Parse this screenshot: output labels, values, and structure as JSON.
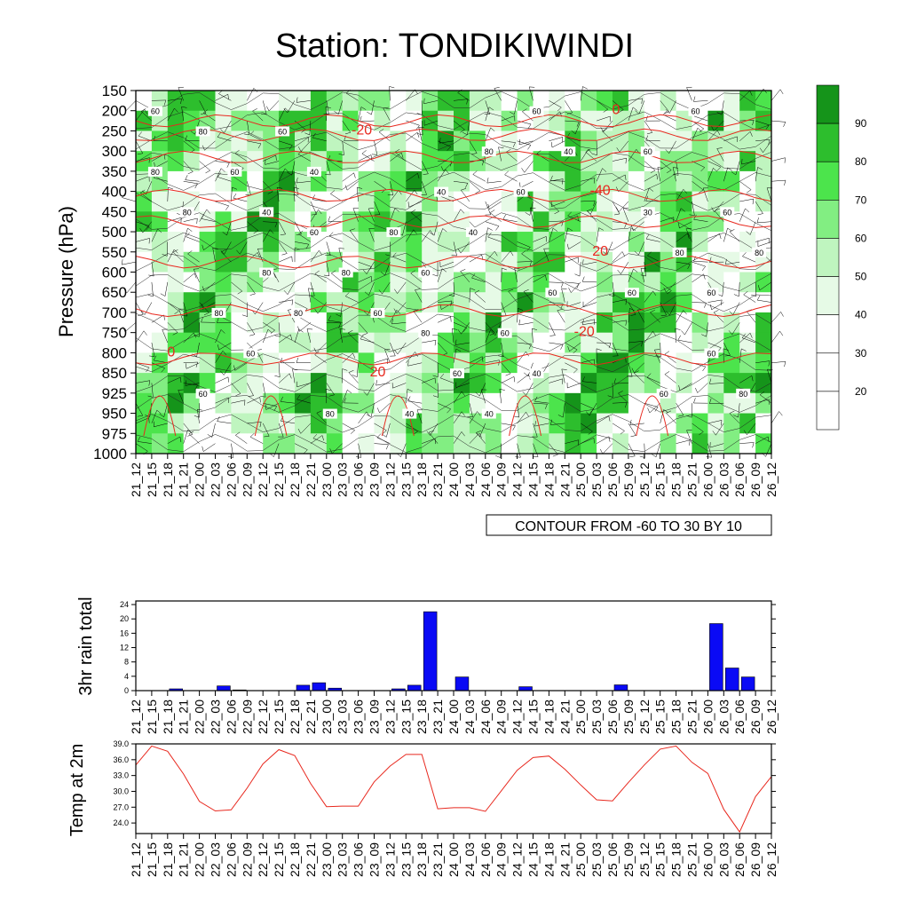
{
  "title": "Station: TONDIKIWINDI",
  "time_labels": [
    "21_12",
    "21_15",
    "21_18",
    "21_21",
    "22_00",
    "22_03",
    "22_06",
    "22_09",
    "22_12",
    "22_15",
    "22_18",
    "22_21",
    "23_00",
    "23_03",
    "23_06",
    "23_09",
    "23_12",
    "23_15",
    "23_18",
    "23_21",
    "24_00",
    "24_03",
    "24_06",
    "24_09",
    "24_12",
    "24_15",
    "24_18",
    "24_21",
    "25_00",
    "25_03",
    "25_06",
    "25_09",
    "25_12",
    "25_15",
    "25_18",
    "25_21",
    "26_00",
    "26_03",
    "26_06",
    "26_09",
    "26_12"
  ],
  "contour_note": "CONTOUR FROM -60 TO 30 BY 10",
  "colors": {
    "temp_line": "#e8281e",
    "rain_bar": "#0a0af5",
    "green_ramp": [
      "#ffffff",
      "#ffffff",
      "#ffffff",
      "#e6fae6",
      "#bff5bf",
      "#82ee82",
      "#4ce44c",
      "#2dbe2d",
      "#15941a"
    ]
  },
  "chart_data": [
    {
      "type": "heatmap",
      "name": "pressure-time cross section",
      "ylabel": "Pressure (hPa)",
      "y_ticks": [
        150,
        200,
        250,
        300,
        350,
        400,
        450,
        500,
        550,
        600,
        650,
        700,
        750,
        800,
        850,
        925,
        950,
        975,
        1000
      ],
      "legend": {
        "placement": "right",
        "labels": [
          "20",
          "30",
          "40",
          "50",
          "60",
          "70",
          "80",
          "90"
        ]
      },
      "contour_labels": [
        "60",
        "40",
        "60",
        "40",
        "-40",
        "60",
        "60",
        "40",
        "60",
        "40",
        "60",
        "80",
        "60",
        "-20",
        "40",
        "-20",
        "60",
        "80",
        "80",
        "40",
        "60",
        "60",
        "80",
        "60",
        "80",
        "60",
        "40",
        "80",
        "0",
        "60",
        "80",
        "60",
        "0",
        "60",
        "80",
        "80",
        "40",
        "60",
        "60",
        "80",
        "80",
        "20",
        "80",
        "20",
        "60",
        "80",
        "60",
        "80",
        "60",
        "30"
      ]
    },
    {
      "type": "bar",
      "ylabel": "3hr rain total",
      "ylim": [
        0,
        25
      ],
      "y_ticks": [
        0,
        4,
        8,
        12,
        16,
        20,
        24
      ],
      "values": [
        0,
        0,
        0.5,
        0,
        0,
        1.3,
        0.2,
        0,
        0,
        0,
        1.5,
        2.2,
        0.7,
        0,
        0,
        0,
        0.5,
        1.5,
        22,
        0,
        3.8,
        0,
        0,
        0,
        1.1,
        0,
        0,
        0,
        0,
        0,
        1.6,
        0,
        0,
        0,
        0,
        0,
        18.7,
        6.3,
        3.8,
        0
      ]
    },
    {
      "type": "line",
      "ylabel": "Temp at 2m",
      "ylim": [
        22,
        39
      ],
      "y_ticks": [
        "24.0",
        "27.0",
        "30.0",
        "33.0",
        "36.0",
        "39.0"
      ],
      "values": [
        35.0,
        38.6,
        37.6,
        33.3,
        28.1,
        26.3,
        26.5,
        30.6,
        35.2,
        37.9,
        36.8,
        31.5,
        27.1,
        27.2,
        27.2,
        31.8,
        34.8,
        37.0,
        37.0,
        26.7,
        26.9,
        26.9,
        26.2,
        30.1,
        34.0,
        36.4,
        36.7,
        34.2,
        31.2,
        28.4,
        28.2,
        31.7,
        35.0,
        38.0,
        38.6,
        35.5,
        33.4,
        26.6,
        22.3,
        29.0,
        32.8
      ]
    }
  ]
}
